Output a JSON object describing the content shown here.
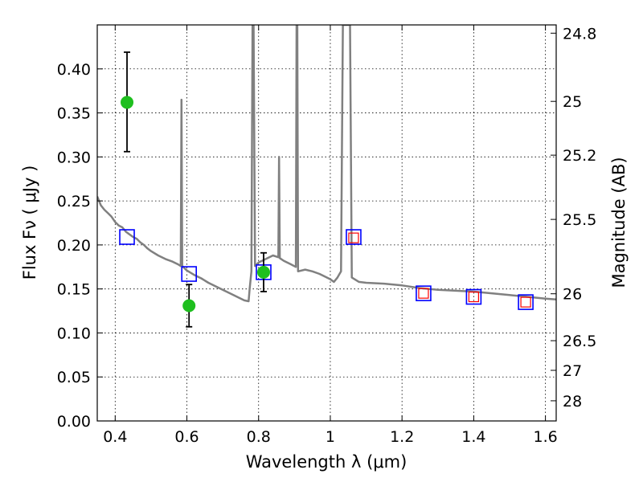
{
  "chart_data": {
    "type": "scatter",
    "title": "",
    "xlabel": "Wavelength  λ (μm)",
    "ylabel": "Flux  Fν  ( μJy )",
    "ylabel_right": "Magnitude (AB)",
    "xlim": [
      0.35,
      1.63
    ],
    "ylim": [
      0.0,
      0.45
    ],
    "grid": true,
    "x_ticks": [
      0.4,
      0.6,
      0.8,
      1.0,
      1.2,
      1.4,
      1.6
    ],
    "x_tick_labels": [
      "0.4",
      "0.6",
      "0.8",
      "1",
      "1.2",
      "1.4",
      "1.6"
    ],
    "y_ticks": [
      0.0,
      0.05,
      0.1,
      0.15,
      0.2,
      0.25,
      0.3,
      0.35,
      0.4
    ],
    "y_tick_labels": [
      "0.00",
      "0.05",
      "0.10",
      "0.15",
      "0.20",
      "0.25",
      "0.30",
      "0.35",
      "0.40"
    ],
    "right_ticks": [
      {
        "flux": 0.4406,
        "label": "24.8"
      },
      {
        "flux": 0.3631,
        "label": "25"
      },
      {
        "flux": 0.302,
        "label": "25.2"
      },
      {
        "flux": 0.229,
        "label": "25.5"
      },
      {
        "flux": 0.1445,
        "label": "26"
      },
      {
        "flux": 0.0912,
        "label": "26.5"
      },
      {
        "flux": 0.0575,
        "label": "27"
      },
      {
        "flux": 0.0229,
        "label": "28"
      }
    ],
    "model_spectrum": [
      [
        0.35,
        0.255
      ],
      [
        0.36,
        0.245
      ],
      [
        0.37,
        0.24
      ],
      [
        0.38,
        0.236
      ],
      [
        0.39,
        0.232
      ],
      [
        0.4,
        0.226
      ],
      [
        0.41,
        0.222
      ],
      [
        0.42,
        0.22
      ],
      [
        0.43,
        0.215
      ],
      [
        0.44,
        0.212
      ],
      [
        0.45,
        0.209
      ],
      [
        0.46,
        0.207
      ],
      [
        0.47,
        0.203
      ],
      [
        0.48,
        0.2
      ],
      [
        0.49,
        0.196
      ],
      [
        0.5,
        0.193
      ],
      [
        0.52,
        0.188
      ],
      [
        0.54,
        0.184
      ],
      [
        0.56,
        0.181
      ],
      [
        0.575,
        0.178
      ],
      [
        0.583,
        0.176
      ],
      [
        0.585,
        0.365
      ],
      [
        0.587,
        0.176
      ],
      [
        0.6,
        0.171
      ],
      [
        0.62,
        0.166
      ],
      [
        0.64,
        0.162
      ],
      [
        0.66,
        0.157
      ],
      [
        0.68,
        0.153
      ],
      [
        0.7,
        0.149
      ],
      [
        0.72,
        0.145
      ],
      [
        0.74,
        0.141
      ],
      [
        0.76,
        0.137
      ],
      [
        0.772,
        0.136
      ],
      [
        0.775,
        0.15
      ],
      [
        0.78,
        0.17
      ],
      [
        0.783,
        0.45
      ],
      [
        0.786,
        0.45
      ],
      [
        0.79,
        0.176
      ],
      [
        0.8,
        0.18
      ],
      [
        0.82,
        0.184
      ],
      [
        0.84,
        0.188
      ],
      [
        0.855,
        0.186
      ],
      [
        0.857,
        0.3
      ],
      [
        0.859,
        0.185
      ],
      [
        0.87,
        0.182
      ],
      [
        0.89,
        0.178
      ],
      [
        0.904,
        0.175
      ],
      [
        0.906,
        0.45
      ],
      [
        0.908,
        0.45
      ],
      [
        0.91,
        0.17
      ],
      [
        0.93,
        0.172
      ],
      [
        0.95,
        0.17
      ],
      [
        0.97,
        0.167
      ],
      [
        0.99,
        0.163
      ],
      [
        1.0,
        0.161
      ],
      [
        1.01,
        0.158
      ],
      [
        1.02,
        0.163
      ],
      [
        1.03,
        0.17
      ],
      [
        1.035,
        0.45
      ],
      [
        1.055,
        0.45
      ],
      [
        1.06,
        0.163
      ],
      [
        1.08,
        0.158
      ],
      [
        1.1,
        0.157
      ],
      [
        1.15,
        0.156
      ],
      [
        1.2,
        0.154
      ],
      [
        1.25,
        0.151
      ],
      [
        1.3,
        0.149
      ],
      [
        1.35,
        0.148
      ],
      [
        1.4,
        0.147
      ],
      [
        1.45,
        0.145
      ],
      [
        1.5,
        0.143
      ],
      [
        1.55,
        0.141
      ],
      [
        1.6,
        0.139
      ],
      [
        1.63,
        0.138
      ]
    ],
    "observed": [
      {
        "x": 0.433,
        "y": 0.362,
        "err_lo": 0.306,
        "err_hi": 0.419
      },
      {
        "x": 0.606,
        "y": 0.131,
        "err_lo": 0.107,
        "err_hi": 0.155
      },
      {
        "x": 0.814,
        "y": 0.169,
        "err_lo": 0.147,
        "err_hi": 0.191
      }
    ],
    "model_photometry_blue": [
      {
        "x": 0.433,
        "y": 0.209
      },
      {
        "x": 0.606,
        "y": 0.167
      },
      {
        "x": 0.814,
        "y": 0.169
      },
      {
        "x": 1.065,
        "y": 0.209
      },
      {
        "x": 1.26,
        "y": 0.145
      },
      {
        "x": 1.4,
        "y": 0.141
      },
      {
        "x": 1.545,
        "y": 0.135
      }
    ],
    "model_photometry_red": [
      {
        "x": 1.065,
        "y": 0.208
      },
      {
        "x": 1.26,
        "y": 0.145
      },
      {
        "x": 1.4,
        "y": 0.141
      },
      {
        "x": 1.545,
        "y": 0.135
      }
    ],
    "colors": {
      "spectrum": "#808080",
      "observed": "#1fbf1f",
      "blue_square": "#0000ff",
      "red_square": "#ff0000",
      "grid": "#000000"
    }
  }
}
